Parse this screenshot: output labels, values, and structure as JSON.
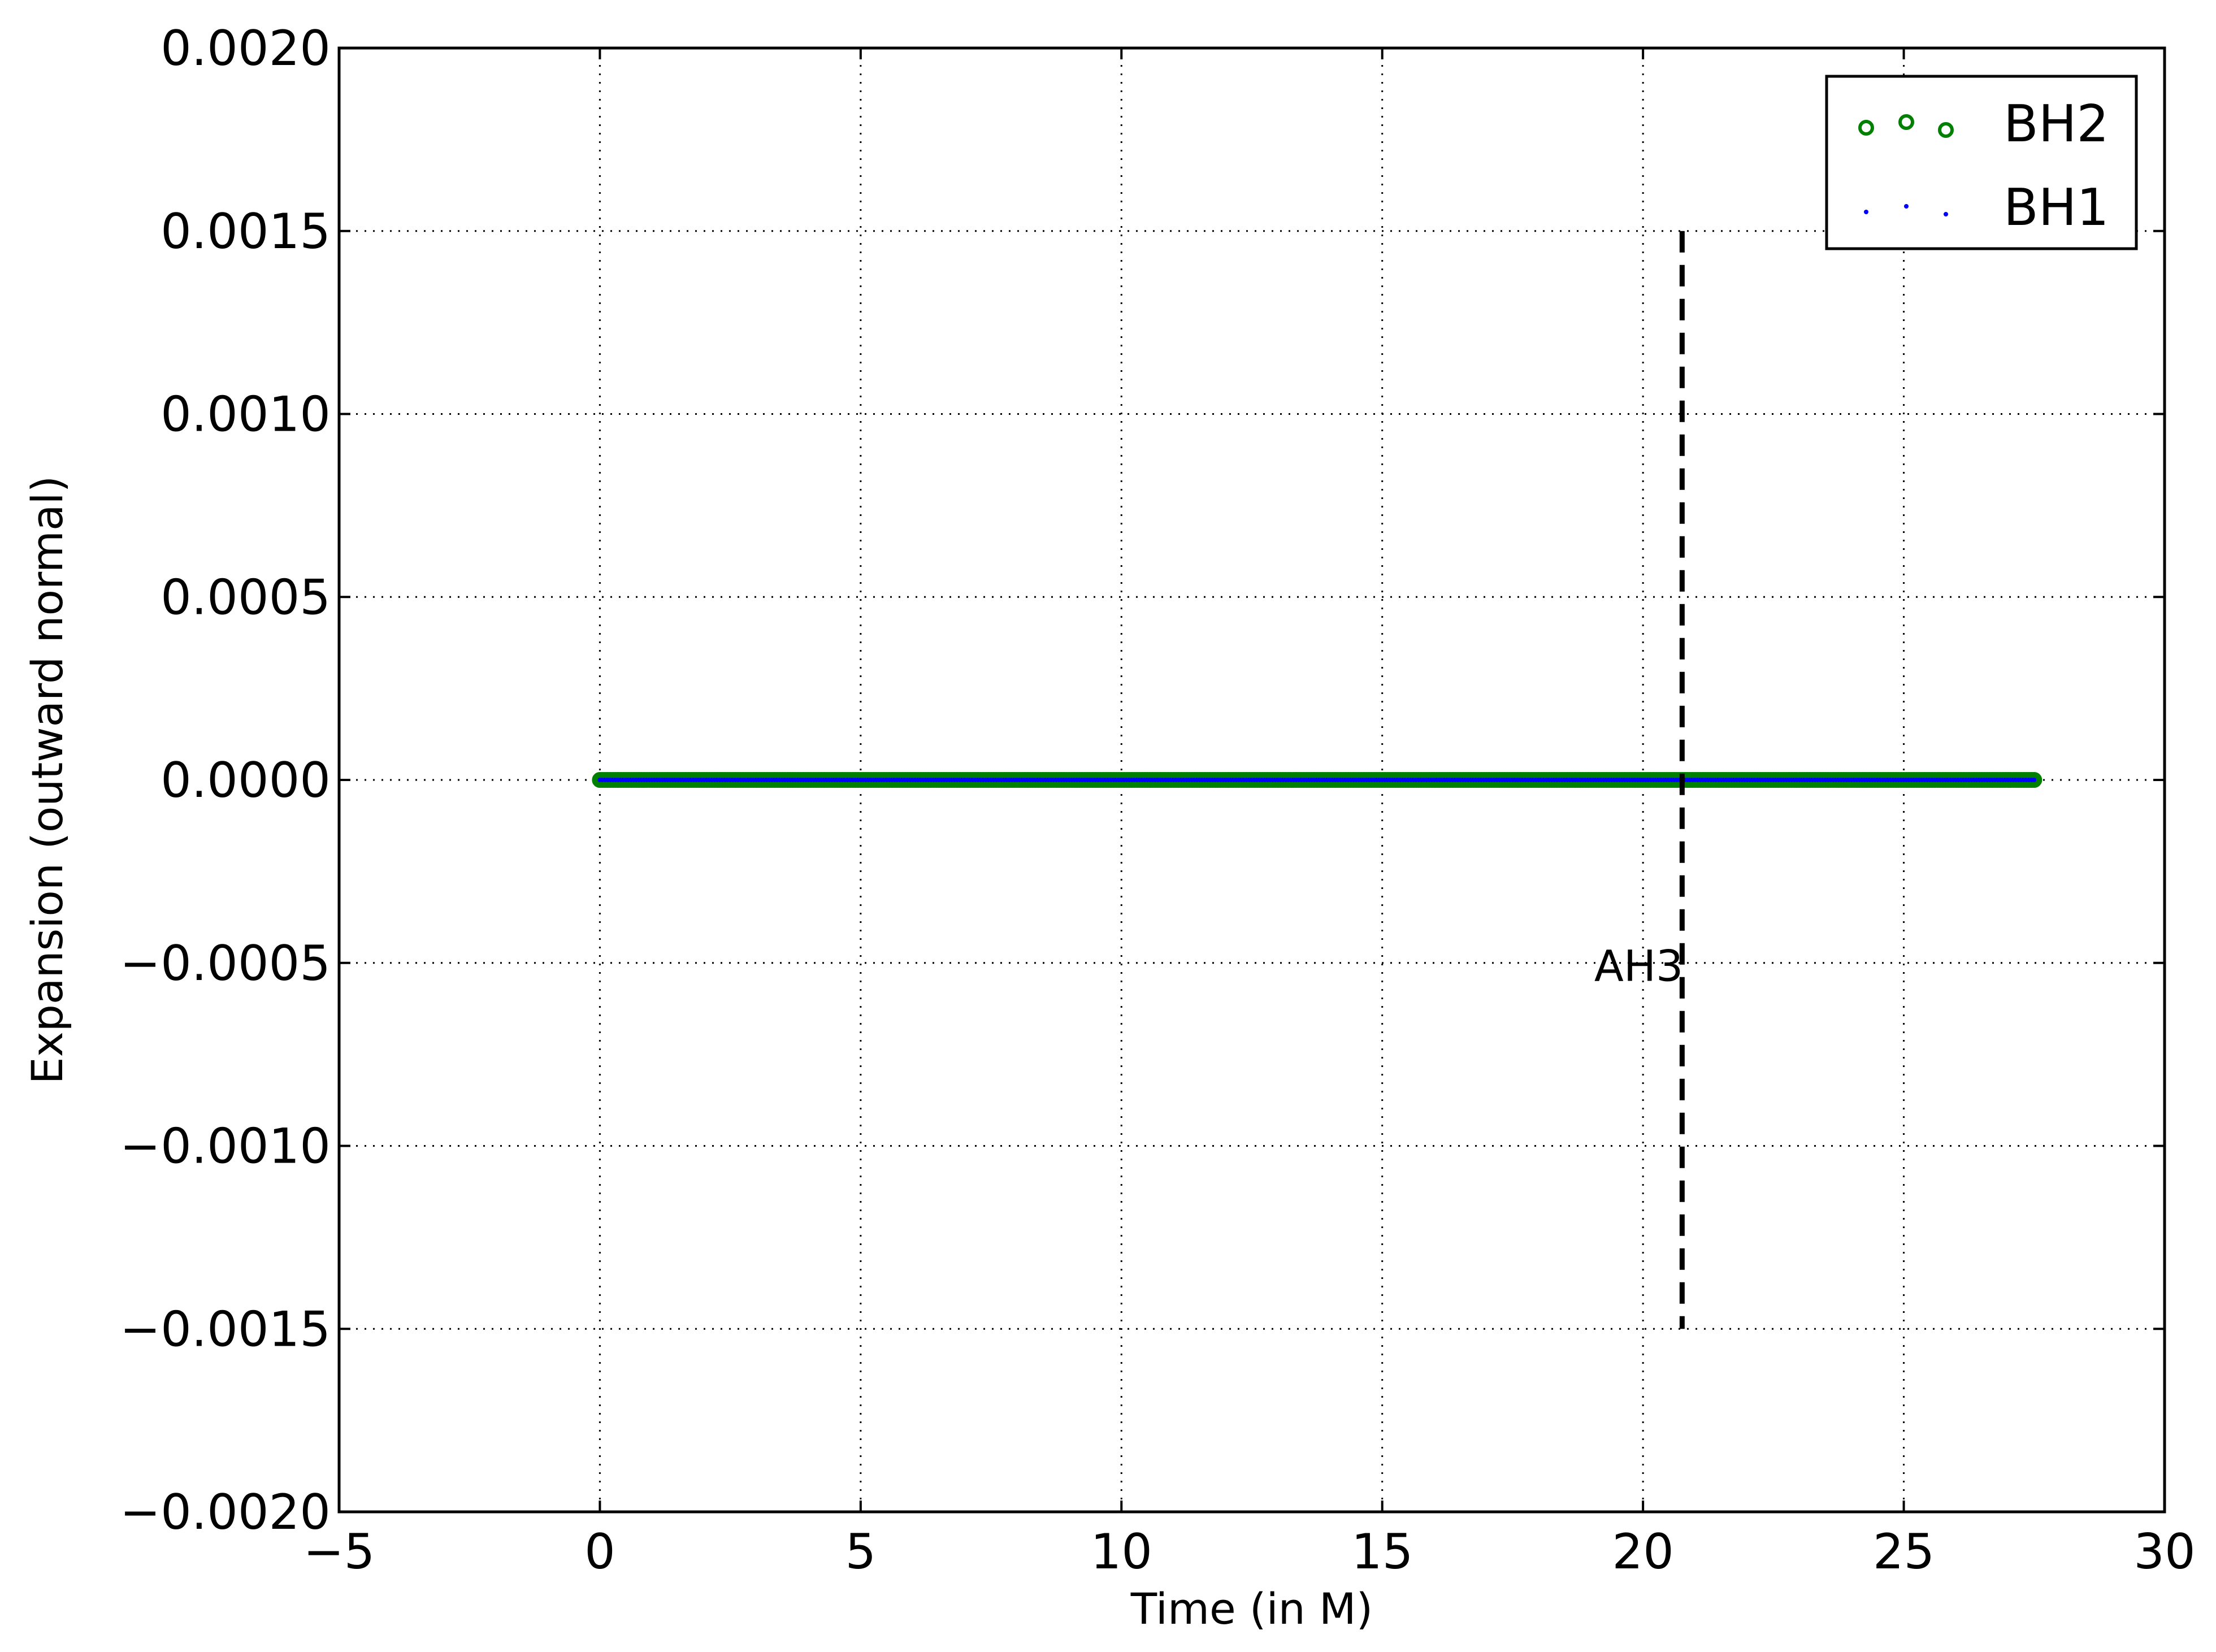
{
  "chart_data": {
    "type": "scatter",
    "title": "",
    "xlabel": "Time (in M)",
    "ylabel": "Expansion (outward normal)",
    "xlim": [
      -5,
      30
    ],
    "ylim": [
      -0.002,
      0.002
    ],
    "grid": true,
    "legend_position": "top-right",
    "x_ticks": [
      -5,
      0,
      5,
      10,
      15,
      20,
      25,
      30
    ],
    "x_tick_labels": [
      "−5",
      "0",
      "5",
      "10",
      "15",
      "20",
      "25",
      "30"
    ],
    "y_ticks": [
      0.002,
      0.0015,
      0.001,
      0.0005,
      0.0,
      -0.0005,
      -0.001,
      -0.0015,
      -0.002
    ],
    "y_tick_labels": [
      "0.0020",
      "0.0015",
      "0.0010",
      "0.0005",
      "0.0000",
      "−0.0005",
      "−0.0010",
      "−0.0015",
      "−0.0020"
    ],
    "series": [
      {
        "name": "BH2",
        "marker": "circle-open",
        "color": "#008000",
        "x_range": [
          0,
          27.5
        ],
        "x_step": 0.05,
        "y": 0.0
      },
      {
        "name": "BH1",
        "marker": "dot",
        "color": "#0000ff",
        "x_range": [
          0,
          27.5
        ],
        "x_step": 0.05,
        "y": 0.0
      }
    ],
    "annotations": [
      {
        "type": "vline",
        "x": 20.75,
        "y_range": [
          -0.0015,
          0.0015
        ],
        "style": "dashed",
        "color": "#000000",
        "label": "AH3",
        "label_y": -0.00045
      }
    ]
  }
}
